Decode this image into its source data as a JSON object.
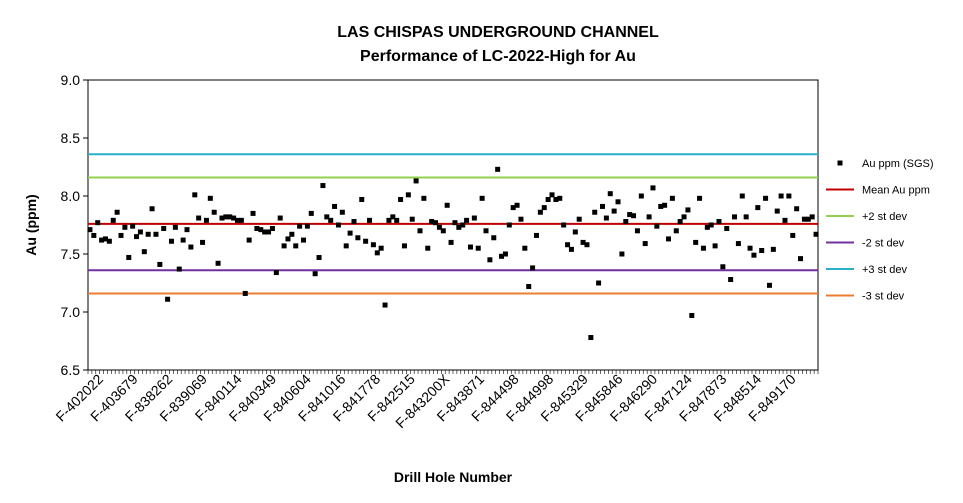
{
  "chart_data": {
    "type": "scatter",
    "title": "LAS CHISPAS UNDERGROUND CHANNEL",
    "subtitle": "Performance of LC-2022-High for Au",
    "xlabel": "Drill Hole Number",
    "ylabel": "Au (ppm)",
    "ylim": [
      6.5,
      9.0
    ],
    "yticks": [
      "6.5",
      "7.0",
      "7.5",
      "8.0",
      "8.5",
      "9.0"
    ],
    "grid": false,
    "legend_position": "right",
    "x_tick_labels": [
      "F-402022",
      "F-403679",
      "F-838262",
      "F-839069",
      "F-840114",
      "F-840349",
      "F-840604",
      "F-841016",
      "F-841778",
      "F-842515",
      "F-843200X",
      "F-843871",
      "F-844498",
      "F-844998",
      "F-845329",
      "F-845846",
      "F-846290",
      "F-847124",
      "F-847873",
      "F-848514",
      "F-849170"
    ],
    "series": [
      {
        "name": "Au ppm (SGS)",
        "color": "#000000",
        "marker": "square",
        "values": [
          7.71,
          7.66,
          7.77,
          7.62,
          7.63,
          7.61,
          7.79,
          7.86,
          7.66,
          7.73,
          7.47,
          7.74,
          7.65,
          7.69,
          7.52,
          7.67,
          7.89,
          7.67,
          7.41,
          7.72,
          7.11,
          7.61,
          7.73,
          7.37,
          7.62,
          7.71,
          7.56,
          8.01,
          7.81,
          7.6,
          7.79,
          7.98,
          7.86,
          7.42,
          7.81,
          7.82,
          7.82,
          7.81,
          7.79,
          7.79,
          7.16,
          7.62,
          7.85,
          7.72,
          7.71,
          7.69,
          7.69,
          7.72,
          7.34,
          7.81,
          7.57,
          7.63,
          7.67,
          7.57,
          7.74,
          7.62,
          7.74,
          7.85,
          7.33,
          7.47,
          8.09,
          7.82,
          7.79,
          7.91,
          7.75,
          7.86,
          7.57,
          7.68,
          7.78,
          7.64,
          7.97,
          7.61,
          7.79,
          7.58,
          7.51,
          7.55,
          7.06,
          7.79,
          7.82,
          7.79,
          7.97,
          7.57,
          8.01,
          7.8,
          8.13,
          7.7,
          7.98,
          7.55,
          7.78,
          7.77,
          7.73,
          7.7,
          7.92,
          7.6,
          7.77,
          7.73,
          7.75,
          7.79,
          7.56,
          7.81,
          7.55,
          7.98,
          7.7,
          7.45,
          7.64,
          8.23,
          7.48,
          7.5,
          7.75,
          7.9,
          7.92,
          7.8,
          7.55,
          7.22,
          7.38,
          7.66,
          7.86,
          7.9,
          7.97,
          8.01,
          7.97,
          7.98,
          7.75,
          7.58,
          7.54,
          7.69,
          7.8,
          7.6,
          7.58,
          6.78,
          7.86,
          7.25,
          7.91,
          7.81,
          8.02,
          7.87,
          7.95,
          7.5,
          7.78,
          7.84,
          7.83,
          7.7,
          8.0,
          7.59,
          7.82,
          8.07,
          7.74,
          7.91,
          7.92,
          7.63,
          7.98,
          7.7,
          7.78,
          7.82,
          7.88,
          6.97,
          7.6,
          7.98,
          7.55,
          7.73,
          7.75,
          7.57,
          7.78,
          7.39,
          7.72,
          7.28,
          7.82,
          7.59,
          8.0,
          7.82,
          7.55,
          7.49,
          7.9,
          7.53,
          7.98,
          7.23,
          7.54,
          7.87,
          8.0,
          7.79,
          8.0,
          7.66,
          7.89,
          7.46,
          7.8,
          7.8,
          7.82,
          7.67
        ]
      },
      {
        "name": "Mean Au ppm",
        "color": "#c00000",
        "value": 7.76
      },
      {
        "name": "+2 st dev",
        "color": "#92d050",
        "value": 8.16
      },
      {
        "name": "-2 st dev",
        "color": "#7030a0",
        "value": 7.36
      },
      {
        "name": "+3 st dev",
        "color": "#2ab0c8",
        "value": 8.36
      },
      {
        "name": "-3 st dev",
        "color": "#ed7d31",
        "value": 7.16
      }
    ]
  }
}
